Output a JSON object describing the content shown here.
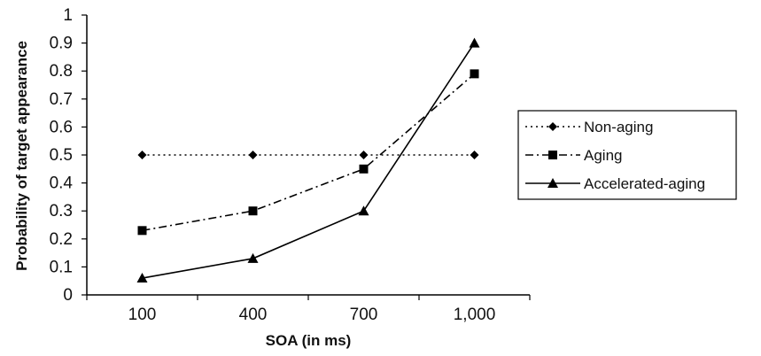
{
  "chart_data": {
    "type": "line",
    "title": "",
    "xlabel": "SOA (in ms)",
    "ylabel": "Probability of target appearance",
    "categories": [
      "100",
      "400",
      "700",
      "1,000"
    ],
    "ylim": [
      0,
      1
    ],
    "yticks": [
      "0",
      "0.1",
      "0.2",
      "0.3",
      "0.4",
      "0.5",
      "0.6",
      "0.7",
      "0.8",
      "0.9",
      "1"
    ],
    "grid": false,
    "legend_position": "right",
    "series": [
      {
        "name": "Non-aging",
        "values": [
          0.5,
          0.5,
          0.5,
          0.5
        ],
        "marker": "diamond",
        "dash": "dotted",
        "color": "#000000"
      },
      {
        "name": "Aging",
        "values": [
          0.23,
          0.3,
          0.45,
          0.79
        ],
        "marker": "square",
        "dash": "dash-dot",
        "color": "#000000"
      },
      {
        "name": "Accelerated-aging",
        "values": [
          0.06,
          0.13,
          0.3,
          0.9
        ],
        "marker": "triangle",
        "dash": "solid",
        "color": "#000000"
      }
    ]
  }
}
